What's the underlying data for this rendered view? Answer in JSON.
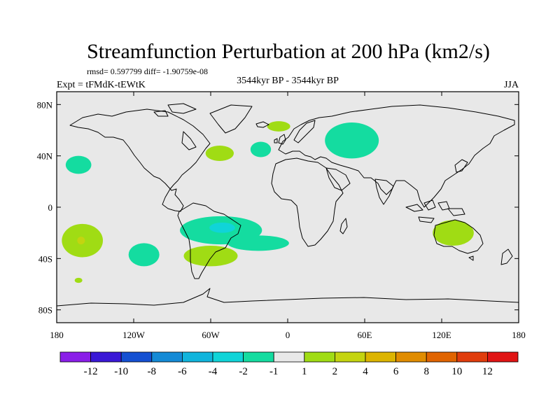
{
  "chart_data": {
    "type": "heatmap",
    "title": "Streamfunction Perturbation at 200 hPa (km2/s)",
    "stats": "rmsd= 0.597799 diff= -1.90759e-08",
    "left_label": "Expt = tFMdK-tEWtK",
    "center_label": "3544kyr BP - 3544kyr BP",
    "right_label": "JJA",
    "x_ticks": [
      {
        "value": -180,
        "label": "180"
      },
      {
        "value": -120,
        "label": "120W"
      },
      {
        "value": -60,
        "label": "60W"
      },
      {
        "value": 0,
        "label": "0"
      },
      {
        "value": 60,
        "label": "60E"
      },
      {
        "value": 120,
        "label": "120E"
      },
      {
        "value": 180,
        "label": "180"
      }
    ],
    "y_ticks": [
      {
        "value": 80,
        "label": "80N"
      },
      {
        "value": 40,
        "label": "40N"
      },
      {
        "value": 0,
        "label": "0"
      },
      {
        "value": -40,
        "label": "40S"
      },
      {
        "value": -80,
        "label": "80S"
      }
    ],
    "lon_range": [
      -180,
      180
    ],
    "lat_range": [
      -90,
      90
    ],
    "colorbar": {
      "colors": [
        "#8a1ee8",
        "#3a18d6",
        "#1450d2",
        "#148ad6",
        "#10b4dc",
        "#10d4d8",
        "#14dca0",
        "#e8e8e8",
        "#a0dc14",
        "#c4d410",
        "#dcb400",
        "#e08c00",
        "#e06400",
        "#e03c0c",
        "#e01414"
      ],
      "labels": [
        "-12",
        "-10",
        "-8",
        "-6",
        "-4",
        "-2",
        "-1",
        "1",
        "2",
        "4",
        "6",
        "8",
        "10",
        "12"
      ]
    },
    "background_color": "#e8e8e8",
    "regions": [
      {
        "name": "north-pacific-negative",
        "lon": -163,
        "lat": 33,
        "rlon": 10,
        "rlat": 7,
        "level": -1
      },
      {
        "name": "north-atlantic-west-positive",
        "lon": -53,
        "lat": 42,
        "rlon": 11,
        "rlat": 6,
        "level": 1
      },
      {
        "name": "north-atlantic-central-negative",
        "lon": -21,
        "lat": 45,
        "rlon": 8,
        "rlat": 6,
        "level": -1
      },
      {
        "name": "scandinavia-positive",
        "lon": -7,
        "lat": 63,
        "rlon": 9,
        "rlat": 4,
        "level": 1
      },
      {
        "name": "siberia-negative",
        "lon": 50,
        "lat": 52,
        "rlon": 21,
        "rlat": 14,
        "level": -1
      },
      {
        "name": "south-pacific-positive",
        "lon": -160,
        "lat": -26,
        "rlon": 16,
        "rlat": 13,
        "level": 1
      },
      {
        "name": "south-pacific-center-positive",
        "lon": -161,
        "lat": -26,
        "rlon": 3,
        "rlat": 3,
        "level": 2
      },
      {
        "name": "southeast-pacific-negative",
        "lon": -112,
        "lat": -37,
        "rlon": 12,
        "rlat": 9,
        "level": -1
      },
      {
        "name": "south-pacific-small-positive",
        "lon": -163,
        "lat": -57,
        "rlon": 3,
        "rlat": 2,
        "level": 1
      },
      {
        "name": "south-america-negative",
        "lon": -52,
        "lat": -18,
        "rlon": 32,
        "rlat": 11,
        "level": -1
      },
      {
        "name": "brazil-core-negative",
        "lon": -51,
        "lat": -16,
        "rlon": 10,
        "rlat": 4,
        "level": -2
      },
      {
        "name": "south-atlantic-negative",
        "lon": -23,
        "lat": -28,
        "rlon": 24,
        "rlat": 6,
        "level": -1
      },
      {
        "name": "argentina-positive",
        "lon": -60,
        "lat": -38,
        "rlon": 21,
        "rlat": 8,
        "level": 1
      },
      {
        "name": "australia-positive",
        "lon": 129,
        "lat": -20,
        "rlon": 16,
        "rlat": 10,
        "level": 1
      }
    ]
  }
}
